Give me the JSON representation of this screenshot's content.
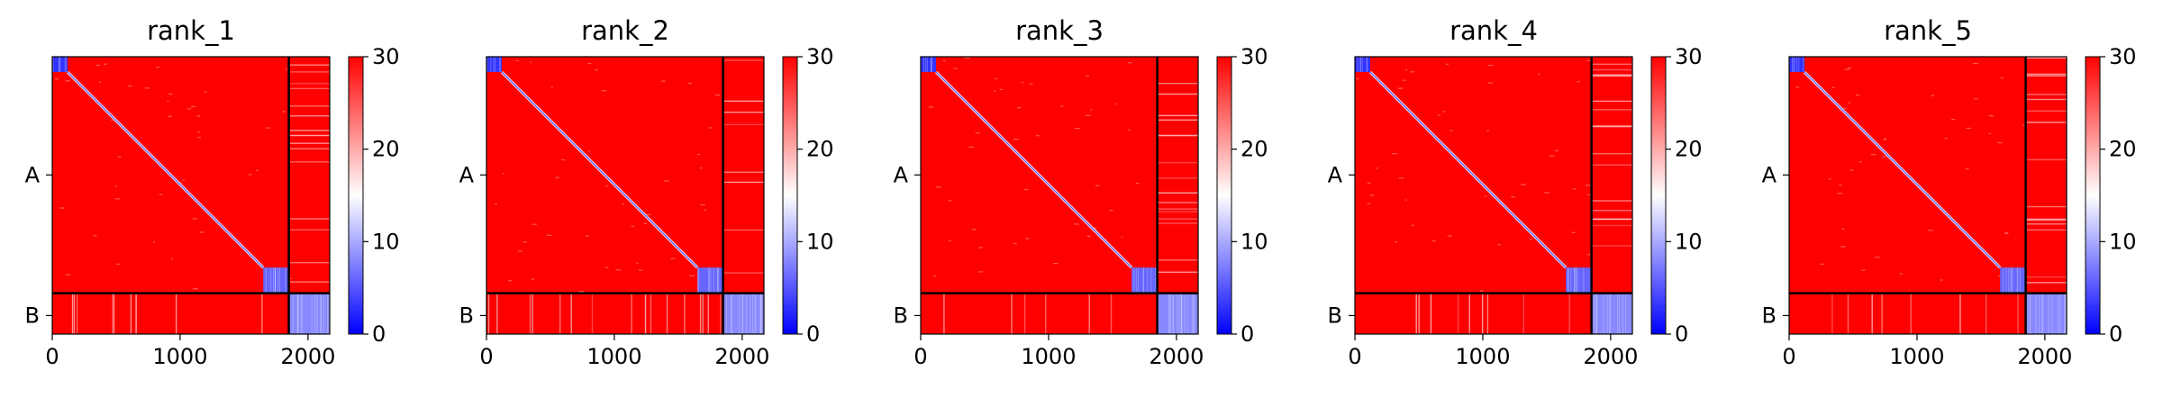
{
  "chart_data": {
    "type": "heatmap",
    "colormap": "bwr",
    "colors": {
      "low": "#0000ff",
      "mid": "#ffffff",
      "high": "#ff0000",
      "boundary": "#000000"
    },
    "panels": [
      {
        "title": "rank_1",
        "variant": 1
      },
      {
        "title": "rank_2",
        "variant": 2
      },
      {
        "title": "rank_3",
        "variant": 3
      },
      {
        "title": "rank_4",
        "variant": 4
      },
      {
        "title": "rank_5",
        "variant": 5
      }
    ],
    "x_ticks": [
      0,
      1000,
      2000
    ],
    "x_tick_labels": [
      "0",
      "1000",
      "2000"
    ],
    "x_range": [
      0,
      2170
    ],
    "y_ticks": [
      {
        "label": "A",
        "value": 925
      },
      {
        "label": "B",
        "value": 2025
      }
    ],
    "chain_boundary": 1850,
    "colorbar": {
      "range": [
        0,
        30
      ],
      "ticks": [
        0,
        10,
        20,
        30
      ],
      "tick_labels": [
        "0",
        "10",
        "20",
        "30"
      ]
    },
    "blocks": [
      {
        "name": "start",
        "range": [
          0,
          120
        ],
        "value": 3
      },
      {
        "name": "A-end",
        "range": [
          1650,
          1850
        ],
        "value": 6
      },
      {
        "name": "B",
        "range": [
          1850,
          2170
        ],
        "value": 8
      }
    ],
    "background_value": 30,
    "diagonal_value": 5
  }
}
